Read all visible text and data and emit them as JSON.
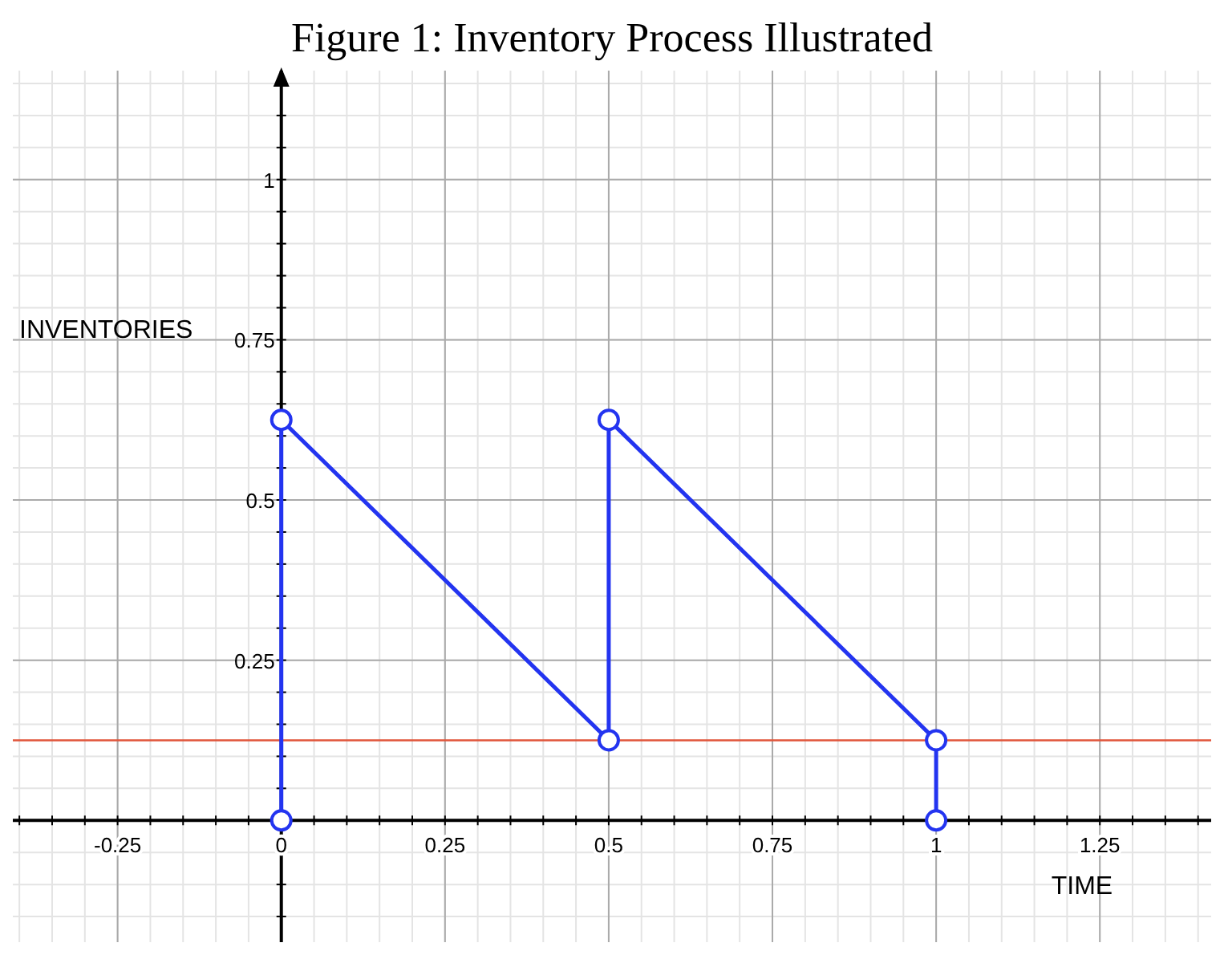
{
  "chart_data": {
    "type": "line",
    "title": "Figure 1: Inventory Process Illustrated",
    "xlabel": "TIME",
    "ylabel": "INVENTORIES",
    "xlim": [
      -0.41,
      1.42
    ],
    "ylim": [
      -0.19,
      1.17
    ],
    "xticks": [
      -0.25,
      0,
      0.25,
      0.5,
      0.75,
      1,
      1.25
    ],
    "yticks": [
      0.25,
      0.5,
      0.75,
      1
    ],
    "grid": true,
    "marker": "circle",
    "line_style": "solid",
    "series": [
      {
        "color": "#2334f0",
        "x": [
          0,
          0,
          0.5,
          0.5,
          1,
          1
        ],
        "values": [
          0,
          0.625,
          0.125,
          0.625,
          0.125,
          0
        ]
      }
    ],
    "ref_lines": [
      {
        "axis": "y",
        "value": 0.125,
        "color": "#e0553a"
      }
    ]
  }
}
